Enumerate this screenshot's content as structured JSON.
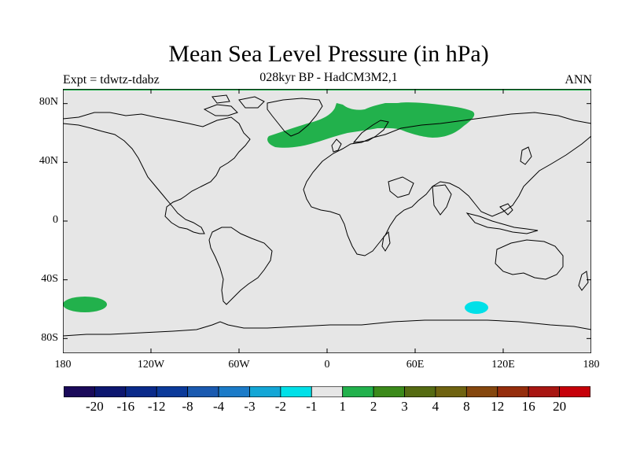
{
  "title": "Mean Sea Level Pressure (in hPa)",
  "subtitle": "028kyr BP - HadCM3M2,1",
  "experiment": "Expt = tdwtz-tdabz",
  "season": "ANN",
  "lat_ticks": [
    "80N",
    "40N",
    "0",
    "40S",
    "80S"
  ],
  "lon_ticks": [
    "180",
    "120W",
    "60W",
    "0",
    "60E",
    "120E",
    "180"
  ],
  "colors": {
    "ocean_background": "#e6e6e6",
    "positive_anomaly": "#22b14c",
    "negative_anomaly": "#00e0e8"
  },
  "colorbar": {
    "colors": [
      "#1a0a5a",
      "#0d1770",
      "#0a2a8a",
      "#0b3a9a",
      "#1a5ab0",
      "#1b7bc8",
      "#13a6d6",
      "#00e0e8",
      "#e6e6e6",
      "#22b14c",
      "#3b8a1a",
      "#556b12",
      "#6f6310",
      "#85470e",
      "#952d0c",
      "#a81612",
      "#c60009"
    ],
    "labels": [
      "-20",
      "-16",
      "-12",
      "-8",
      "-4",
      "-3",
      "-2",
      "-1",
      "1",
      "2",
      "3",
      "4",
      "8",
      "12",
      "16",
      "20"
    ]
  }
}
